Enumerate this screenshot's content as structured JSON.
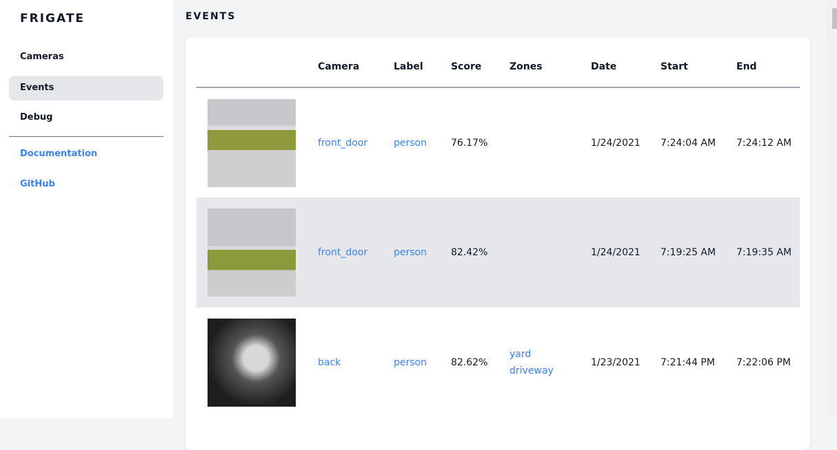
{
  "sidebar": {
    "brand": "FRIGATE",
    "items": [
      {
        "label": "Cameras"
      },
      {
        "label": "Events"
      },
      {
        "label": "Debug"
      }
    ],
    "links": [
      {
        "label": "Documentation"
      },
      {
        "label": "GitHub"
      }
    ]
  },
  "page": {
    "title": "EVENTS"
  },
  "table": {
    "headers": [
      "",
      "Camera",
      "Label",
      "Score",
      "Zones",
      "Date",
      "Start",
      "End"
    ],
    "rows": [
      {
        "camera": "front_door",
        "label": "person",
        "score": "76.17%",
        "zones": [],
        "date": "1/24/2021",
        "start": "7:24:04 AM",
        "end": "7:24:12 AM"
      },
      {
        "camera": "front_door",
        "label": "person",
        "score": "82.42%",
        "zones": [],
        "date": "1/24/2021",
        "start": "7:19:25 AM",
        "end": "7:19:35 AM"
      },
      {
        "camera": "back",
        "label": "person",
        "score": "82.62%",
        "zones": [
          "yard",
          "driveway"
        ],
        "date": "1/23/2021",
        "start": "7:21:44 PM",
        "end": "7:22:06 PM"
      }
    ]
  },
  "colors": {
    "accent": "#3b82f6",
    "active_bg": "#e5e7eb"
  }
}
